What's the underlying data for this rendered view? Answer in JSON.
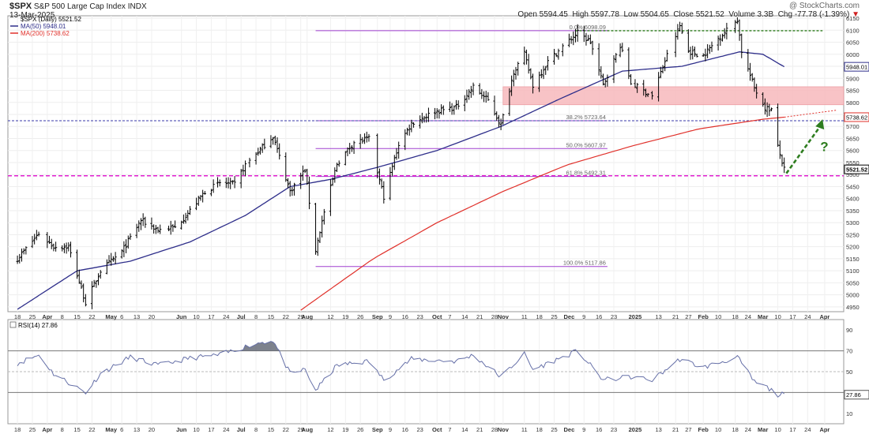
{
  "header": {
    "symbol": "$SPX",
    "name": "S&P 500 Large Cap Index",
    "exchange": "INDX",
    "date": "13-Mar-2025",
    "watermark": "@ StockCharts.com",
    "open_label": "Open",
    "open": "5594.45",
    "high_label": "High",
    "high": "5597.78",
    "low_label": "Low",
    "low": "5504.65",
    "close_label": "Close",
    "close": "5521.52",
    "volume_label": "Volume",
    "volume": "3.3B",
    "chg_label": "Chg",
    "chg": "-77.78 (-1.39%)",
    "chg_arrow": "▼"
  },
  "legend": {
    "price": "$SPX (Daily) 5521.52",
    "ma50": "MA(50) 5948.01",
    "ma200": "MA(200) 5738.62",
    "rsi": "RSI(14) 27.86"
  },
  "colors": {
    "price": "#000000",
    "ma50": "#2e2e8a",
    "ma200": "#e0302a",
    "fib": "#a040d0",
    "support": "#e020d0",
    "resistance_line": "#2e7d1f",
    "zone_fill": "#f7b9bc",
    "arrow": "#2e7d1f",
    "rsi_line": "#6670a8",
    "rsi_fill": "#5c6370",
    "blue_dashed": "#3a3aa8"
  },
  "chart_data": [
    {
      "type": "ohlc",
      "title": "$SPX (Daily) 5521.52",
      "ylim": [
        4930,
        6160
      ],
      "yticks": [
        4950,
        5000,
        5050,
        5100,
        5150,
        5200,
        5250,
        5300,
        5350,
        5400,
        5450,
        5500,
        5550,
        5600,
        5650,
        5700,
        5750,
        5800,
        5850,
        5900,
        5950,
        6000,
        6050,
        6100,
        6150
      ],
      "x_tick_labels": [
        "18",
        "25",
        "Apr",
        "8",
        "15",
        "22",
        "May",
        "6",
        "13",
        "20",
        "Jun",
        "10",
        "17",
        "24",
        "Jul",
        "8",
        "15",
        "22",
        "29",
        "Aug",
        "12",
        "19",
        "26",
        "Sep",
        "9",
        "16",
        "23",
        "Oct",
        "7",
        "14",
        "21",
        "28",
        "Nov",
        "11",
        "18",
        "25",
        "Dec",
        "9",
        "16",
        "23",
        "2025",
        "13",
        "21",
        "27",
        "Feb",
        "10",
        "18",
        "24",
        "Mar",
        "10",
        "17",
        "24",
        "Apr"
      ],
      "x_tick_bold": [
        "Apr",
        "May",
        "Jun",
        "Jul",
        "Aug",
        "Sep",
        "Oct",
        "Nov",
        "Dec",
        "2025",
        "Feb",
        "Mar",
        "Apr"
      ],
      "price_anchors": [
        [
          "2024-03-18",
          5150
        ],
        [
          "2024-03-28",
          5255
        ],
        [
          "2024-04-04",
          5200
        ],
        [
          "2024-04-11",
          5200
        ],
        [
          "2024-04-19",
          4967
        ],
        [
          "2024-04-26",
          5100
        ],
        [
          "2024-05-06",
          5180
        ],
        [
          "2024-05-15",
          5310
        ],
        [
          "2024-05-23",
          5270
        ],
        [
          "2024-05-31",
          5280
        ],
        [
          "2024-06-07",
          5350
        ],
        [
          "2024-06-14",
          5430
        ],
        [
          "2024-06-21",
          5465
        ],
        [
          "2024-06-28",
          5460
        ],
        [
          "2024-07-03",
          5540
        ],
        [
          "2024-07-16",
          5660
        ],
        [
          "2024-07-24",
          5430
        ],
        [
          "2024-07-31",
          5520
        ],
        [
          "2024-08-05",
          5186
        ],
        [
          "2024-08-09",
          5344
        ],
        [
          "2024-08-15",
          5545
        ],
        [
          "2024-08-23",
          5634
        ],
        [
          "2024-08-30",
          5648
        ],
        [
          "2024-09-06",
          5408
        ],
        [
          "2024-09-13",
          5626
        ],
        [
          "2024-09-19",
          5713
        ],
        [
          "2024-09-30",
          5762
        ],
        [
          "2024-10-10",
          5780
        ],
        [
          "2024-10-18",
          5864
        ],
        [
          "2024-10-25",
          5808
        ],
        [
          "2024-10-31",
          5705
        ],
        [
          "2024-11-06",
          5929
        ],
        [
          "2024-11-11",
          6001
        ],
        [
          "2024-11-15",
          5870
        ],
        [
          "2024-11-22",
          5969
        ],
        [
          "2024-11-29",
          6032
        ],
        [
          "2024-12-06",
          6090
        ],
        [
          "2024-12-12",
          6051
        ],
        [
          "2024-12-18",
          5872
        ],
        [
          "2024-12-26",
          6037
        ],
        [
          "2024-12-31",
          5881
        ],
        [
          "2025-01-10",
          5827
        ],
        [
          "2025-01-17",
          5996
        ],
        [
          "2025-01-23",
          6118
        ],
        [
          "2025-01-27",
          6012
        ],
        [
          "2025-02-03",
          5994
        ],
        [
          "2025-02-10",
          6066
        ],
        [
          "2025-02-19",
          6144
        ],
        [
          "2025-02-21",
          6013
        ],
        [
          "2025-02-27",
          5861
        ],
        [
          "2025-03-04",
          5778
        ],
        [
          "2025-03-07",
          5770
        ],
        [
          "2025-03-10",
          5614
        ],
        [
          "2025-03-13",
          5521
        ]
      ],
      "ma50_anchors": [
        [
          "2024-03-18",
          4940
        ],
        [
          "2024-04-15",
          5100
        ],
        [
          "2024-05-10",
          5140
        ],
        [
          "2024-06-07",
          5220
        ],
        [
          "2024-07-03",
          5330
        ],
        [
          "2024-07-24",
          5450
        ],
        [
          "2024-08-12",
          5480
        ],
        [
          "2024-09-03",
          5530
        ],
        [
          "2024-10-01",
          5600
        ],
        [
          "2024-10-31",
          5700
        ],
        [
          "2024-11-29",
          5820
        ],
        [
          "2024-12-27",
          5930
        ],
        [
          "2025-01-24",
          5950
        ],
        [
          "2025-02-20",
          6010
        ],
        [
          "2025-03-03",
          6000
        ],
        [
          "2025-03-13",
          5948
        ]
      ],
      "ma200_anchors": [
        [
          "2024-07-28",
          4930
        ],
        [
          "2024-09-01",
          5150
        ],
        [
          "2024-10-01",
          5300
        ],
        [
          "2024-11-01",
          5430
        ],
        [
          "2024-12-01",
          5540
        ],
        [
          "2025-01-01",
          5620
        ],
        [
          "2025-02-01",
          5690
        ],
        [
          "2025-03-03",
          5730
        ],
        [
          "2025-03-13",
          5738.62
        ]
      ],
      "ma200_projection_end": [
        "2025-04-07",
        5768
      ],
      "fib_levels": [
        {
          "label": "0.0% 6098.09",
          "value": 6098.09
        },
        {
          "label": "38.2% 5723.64",
          "value": 5723.64
        },
        {
          "label": "50.0% 5607.97",
          "value": 5607.97
        },
        {
          "label": "61.8% 5492.31",
          "value": 5492.31
        },
        {
          "label": "100.0% 5117.86",
          "value": 5117.86
        }
      ],
      "fib_range": [
        "2024-08-05",
        "2024-12-20"
      ],
      "resistance_zone": {
        "low": 5790,
        "high": 5865,
        "from": "2024-11-01",
        "to": "2025-04-30"
      },
      "resistance_line": {
        "value": 6098,
        "from": "2024-12-05",
        "to": "2025-03-31"
      },
      "support_line": {
        "value": 5495
      },
      "ma200_line": {
        "value": 5723.64
      },
      "arrow": {
        "from": [
          "2025-03-14",
          5505
        ],
        "to": [
          "2025-03-31",
          5730
        ],
        "label": "?"
      },
      "right_labels": [
        {
          "label": "5948.01",
          "value": 5948.01,
          "style": "ma50"
        },
        {
          "label": "5738.62",
          "value": 5738.62,
          "style": "ma200"
        },
        {
          "label": "5521.52",
          "value": 5521.52,
          "style": "price"
        }
      ]
    },
    {
      "type": "line",
      "title": "RSI(14) 27.86",
      "ylim": [
        0,
        100
      ],
      "yticks": [
        10,
        30,
        50,
        70,
        90
      ],
      "levels": [
        70,
        50,
        30
      ],
      "rsi_anchors": [
        [
          "2024-03-18",
          58
        ],
        [
          "2024-03-28",
          66
        ],
        [
          "2024-04-04",
          48
        ],
        [
          "2024-04-19",
          30
        ],
        [
          "2024-04-26",
          48
        ],
        [
          "2024-05-10",
          64
        ],
        [
          "2024-05-23",
          56
        ],
        [
          "2024-06-07",
          63
        ],
        [
          "2024-06-21",
          66
        ],
        [
          "2024-07-03",
          74
        ],
        [
          "2024-07-10",
          78
        ],
        [
          "2024-07-16",
          80
        ],
        [
          "2024-07-24",
          48
        ],
        [
          "2024-07-31",
          52
        ],
        [
          "2024-08-05",
          32
        ],
        [
          "2024-08-15",
          56
        ],
        [
          "2024-08-30",
          60
        ],
        [
          "2024-09-06",
          42
        ],
        [
          "2024-09-19",
          62
        ],
        [
          "2024-10-10",
          60
        ],
        [
          "2024-10-18",
          66
        ],
        [
          "2024-10-31",
          45
        ],
        [
          "2024-11-11",
          67
        ],
        [
          "2024-11-15",
          52
        ],
        [
          "2024-11-29",
          64
        ],
        [
          "2024-12-06",
          70
        ],
        [
          "2024-12-18",
          42
        ],
        [
          "2024-12-31",
          45
        ],
        [
          "2025-01-10",
          42
        ],
        [
          "2025-01-23",
          62
        ],
        [
          "2025-02-03",
          54
        ],
        [
          "2025-02-19",
          64
        ],
        [
          "2025-02-27",
          40
        ],
        [
          "2025-03-04",
          36
        ],
        [
          "2025-03-10",
          28
        ],
        [
          "2025-03-13",
          27.86
        ]
      ],
      "right_label": "27.86"
    }
  ]
}
